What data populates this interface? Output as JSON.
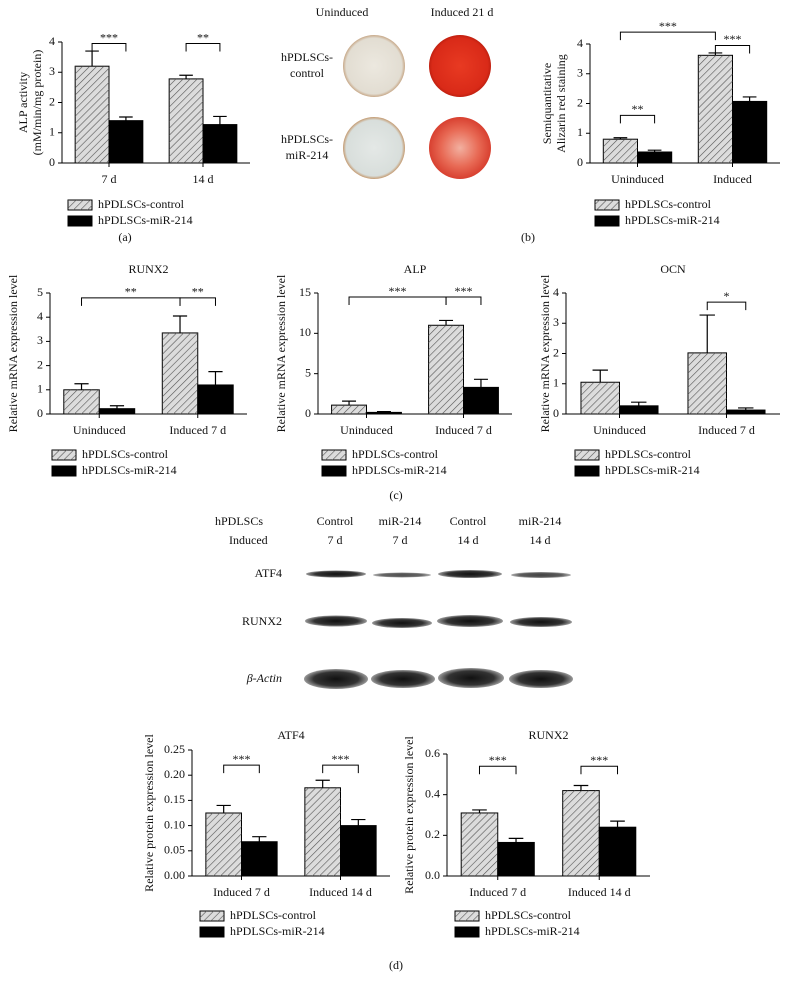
{
  "panel_labels": [
    "(a)",
    "(b)",
    "(c)",
    "(d)"
  ],
  "wells": {
    "columns": [
      "Uninduced",
      "Induced 21 d"
    ],
    "rows": [
      [
        "hPDLSCs-",
        "control"
      ],
      [
        "hPDLSCs-",
        "miR-214"
      ]
    ]
  },
  "blot": {
    "header": [
      "hPDLSCs",
      "Induced"
    ],
    "columns": [
      [
        "Control",
        "7 d"
      ],
      [
        "miR-214",
        "7 d"
      ],
      [
        "Control",
        "14 d"
      ],
      [
        "miR-214",
        "14 d"
      ]
    ],
    "rows": [
      "ATF4",
      "RUNX2",
      "β-Actin"
    ]
  },
  "chart_data": [
    {
      "type": "bar",
      "ylabel": [
        "ALP activity",
        "(mM/min/mg protein)"
      ],
      "categories": [
        "7 d",
        "14 d"
      ],
      "series": [
        {
          "name": "hPDLSCs-control",
          "color": "#dcdcdc",
          "hatch": true,
          "values": [
            3.2,
            2.78
          ],
          "errors": [
            0.5,
            0.12
          ]
        },
        {
          "name": "hPDLSCs-miR-214",
          "color": "#000000",
          "hatch": false,
          "values": [
            1.4,
            1.27
          ],
          "errors": [
            0.12,
            0.27
          ]
        }
      ],
      "ylim": [
        0,
        4
      ],
      "yticks": [
        0,
        1,
        2,
        3,
        4
      ],
      "annotations": [
        "***",
        "**"
      ]
    },
    {
      "type": "bar",
      "ylabel": [
        "Semiquantitative",
        "Alizarin red staining"
      ],
      "categories": [
        "Uninduced",
        "Induced"
      ],
      "series": [
        {
          "name": "hPDLSCs-control",
          "color": "#dcdcdc",
          "hatch": true,
          "values": [
            0.8,
            3.62
          ],
          "errors": [
            0.05,
            0.08
          ]
        },
        {
          "name": "hPDLSCs-miR-214",
          "color": "#000000",
          "hatch": false,
          "values": [
            0.37,
            2.07
          ],
          "errors": [
            0.06,
            0.15
          ]
        }
      ],
      "ylim": [
        0,
        4
      ],
      "yticks": [
        0,
        1,
        2,
        3,
        4
      ],
      "annotations": [
        "**",
        "***",
        "***"
      ]
    },
    {
      "type": "bar",
      "title": "RUNX2",
      "ylabel": "Relative mRNA expression level",
      "categories": [
        "Uninduced",
        "Induced 7 d"
      ],
      "series": [
        {
          "name": "hPDLSCs-control",
          "color": "#dcdcdc",
          "hatch": true,
          "values": [
            1.0,
            3.35
          ],
          "errors": [
            0.25,
            0.7
          ]
        },
        {
          "name": "hPDLSCs-miR-214",
          "color": "#000000",
          "hatch": false,
          "values": [
            0.22,
            1.2
          ],
          "errors": [
            0.12,
            0.55
          ]
        }
      ],
      "ylim": [
        0,
        5
      ],
      "yticks": [
        0,
        1,
        2,
        3,
        4,
        5
      ],
      "annotations": [
        "**",
        "**"
      ]
    },
    {
      "type": "bar",
      "title": "ALP",
      "ylabel": "Relative mRNA expression level",
      "categories": [
        "Uninduced",
        "Induced 7 d"
      ],
      "series": [
        {
          "name": "hPDLSCs-control",
          "color": "#dcdcdc",
          "hatch": true,
          "values": [
            1.1,
            11.0
          ],
          "errors": [
            0.5,
            0.6
          ]
        },
        {
          "name": "hPDLSCs-miR-214",
          "color": "#000000",
          "hatch": false,
          "values": [
            0.2,
            3.3
          ],
          "errors": [
            0.1,
            1.0
          ]
        }
      ],
      "ylim": [
        0,
        15
      ],
      "yticks": [
        0,
        5,
        10,
        15
      ],
      "annotations": [
        "***",
        "***"
      ]
    },
    {
      "type": "bar",
      "title": "OCN",
      "ylabel": "Relative mRNA expression level",
      "categories": [
        "Uninduced",
        "Induced 7 d"
      ],
      "series": [
        {
          "name": "hPDLSCs-control",
          "color": "#dcdcdc",
          "hatch": true,
          "values": [
            1.05,
            2.02
          ],
          "errors": [
            0.4,
            1.25
          ]
        },
        {
          "name": "hPDLSCs-miR-214",
          "color": "#000000",
          "hatch": false,
          "values": [
            0.27,
            0.13
          ],
          "errors": [
            0.12,
            0.07
          ]
        }
      ],
      "ylim": [
        0,
        4
      ],
      "yticks": [
        0,
        1,
        2,
        3,
        4
      ],
      "annotations": [
        "*"
      ]
    },
    {
      "type": "bar",
      "title": "ATF4",
      "ylabel": "Relative protein expression level",
      "categories": [
        "Induced 7 d",
        "Induced 14 d"
      ],
      "series": [
        {
          "name": "hPDLSCs-control",
          "color": "#dcdcdc",
          "hatch": true,
          "values": [
            0.125,
            0.175
          ],
          "errors": [
            0.015,
            0.015
          ]
        },
        {
          "name": "hPDLSCs-miR-214",
          "color": "#000000",
          "hatch": false,
          "values": [
            0.068,
            0.1
          ],
          "errors": [
            0.01,
            0.012
          ]
        }
      ],
      "ylim": [
        0,
        0.25
      ],
      "yticks": [
        {
          "value": 0,
          "label": "0.00"
        },
        {
          "value": 0.05,
          "label": "0.05"
        },
        {
          "value": 0.1,
          "label": "0.10"
        },
        {
          "value": 0.15,
          "label": "0.15"
        },
        {
          "value": 0.2,
          "label": "0.20"
        },
        {
          "value": 0.25,
          "label": "0.25"
        }
      ],
      "annotations": [
        "***",
        "***"
      ]
    },
    {
      "type": "bar",
      "title": "RUNX2",
      "ylabel": "Relative protein expression level",
      "categories": [
        "Induced 7 d",
        "Induced 14 d"
      ],
      "series": [
        {
          "name": "hPDLSCs-control",
          "color": "#dcdcdc",
          "hatch": true,
          "values": [
            0.31,
            0.42
          ],
          "errors": [
            0.015,
            0.025
          ]
        },
        {
          "name": "hPDLSCs-miR-214",
          "color": "#000000",
          "hatch": false,
          "values": [
            0.165,
            0.24
          ],
          "errors": [
            0.02,
            0.03
          ]
        }
      ],
      "ylim": [
        0,
        0.6
      ],
      "yticks": [
        {
          "value": 0,
          "label": "0.0"
        },
        0.2,
        0.4,
        0.6
      ],
      "annotations": [
        "***",
        "***"
      ]
    }
  ]
}
